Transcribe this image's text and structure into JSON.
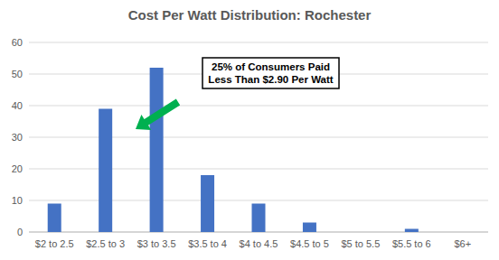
{
  "chart_data": {
    "type": "bar",
    "title": "Cost Per Watt Distribution: Rochester",
    "categories": [
      "$2 to 2.5",
      "$2.5 to 3",
      "$3 to 3.5",
      "$3.5 to 4",
      "$4 to 4.5",
      "$4.5 to 5",
      "$5 to 5.5",
      "$5.5 to 6",
      "$6+"
    ],
    "values": [
      9,
      39,
      52,
      18,
      9,
      3,
      0,
      1,
      0
    ],
    "color": "#4472c4",
    "ylim": [
      0,
      60
    ],
    "yticks": [
      0,
      10,
      20,
      30,
      40,
      50,
      60
    ],
    "grid": true,
    "annotation": [
      "25% of Consumers Paid",
      "Less Than $2.90 Per Watt"
    ]
  }
}
